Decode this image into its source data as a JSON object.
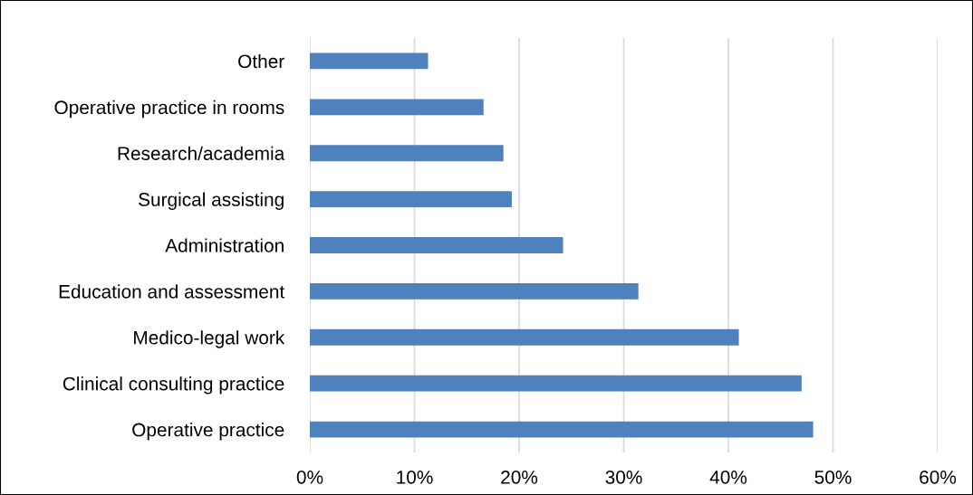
{
  "chart_data": {
    "type": "bar",
    "orientation": "horizontal",
    "categories": [
      "Other",
      "Operative practice in rooms",
      "Research/academia",
      "Surgical assisting",
      "Administration",
      "Education and assessment",
      "Medico-legal work",
      "Clinical consulting practice",
      "Operative practice"
    ],
    "values": [
      11.3,
      16.6,
      18.5,
      19.3,
      24.2,
      31.4,
      41.0,
      47.0,
      48.1
    ],
    "color": "#4f81bd",
    "xlim": [
      0,
      60
    ],
    "xticks": [
      {
        "value": 0,
        "label": "0%"
      },
      {
        "value": 10,
        "label": "10%"
      },
      {
        "value": 20,
        "label": "20%"
      },
      {
        "value": 30,
        "label": "30%"
      },
      {
        "value": 40,
        "label": "40%"
      },
      {
        "value": 50,
        "label": "50%"
      },
      {
        "value": 60,
        "label": "60%"
      }
    ],
    "grid": "x",
    "legend": false
  }
}
